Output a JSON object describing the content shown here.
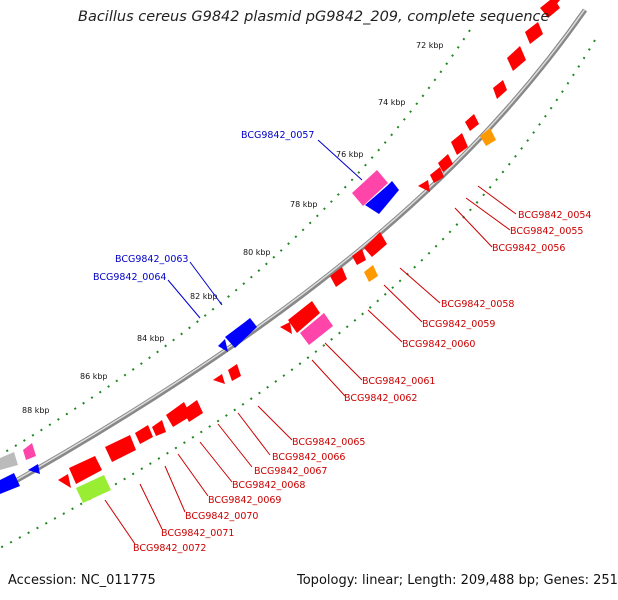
{
  "title": "Bacillus cereus G9842 plasmid pG9842_209, complete sequence",
  "footer": {
    "accession": "Accession: NC_011775",
    "summary": "Topology: linear; Length: 209,488 bp; Genes: 251"
  },
  "colors": {
    "forward": "#ff0000",
    "reverse": "#0000ff",
    "pink": "#ff44aa",
    "orange": "#ff9900",
    "lime": "#99ee33",
    "gray": "#bbbbbb",
    "label_forward": "#cc0000",
    "label_reverse": "#0000cc",
    "ruler": "#228822",
    "backbone": "#888888"
  },
  "ruler_ticks": [
    {
      "label": "72 kbp"
    },
    {
      "label": "74 kbp"
    },
    {
      "label": "76 kbp"
    },
    {
      "label": "78 kbp"
    },
    {
      "label": "80 kbp"
    },
    {
      "label": "82 kbp"
    },
    {
      "label": "84 kbp"
    },
    {
      "label": "86 kbp"
    },
    {
      "label": "88 kbp"
    }
  ],
  "gene_labels": {
    "reverse": [
      "BCG9842_0057",
      "BCG9842_0063",
      "BCG9842_0064"
    ],
    "forward": [
      "BCG9842_0054",
      "BCG9842_0055",
      "BCG9842_0056",
      "BCG9842_0058",
      "BCG9842_0059",
      "BCG9842_0060",
      "BCG9842_0061",
      "BCG9842_0062",
      "BCG9842_0065",
      "BCG9842_0066",
      "BCG9842_0067",
      "BCG9842_0068",
      "BCG9842_0069",
      "BCG9842_0070",
      "BCG9842_0071",
      "BCG9842_0072"
    ]
  }
}
